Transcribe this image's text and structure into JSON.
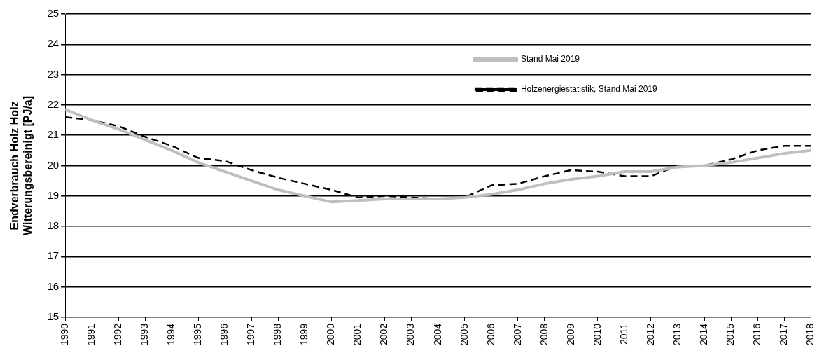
{
  "chart_data": {
    "type": "line",
    "ylabel": "Endverbrauch Holz Holz\nWitterungsbereinigt [PJ/a]",
    "categories": [
      "1990",
      "1991",
      "1992",
      "1993",
      "1994",
      "1995",
      "1996",
      "1997",
      "1998",
      "1999",
      "2000",
      "2001",
      "2002",
      "2003",
      "2004",
      "2005",
      "2006",
      "2007",
      "2008",
      "2009",
      "2010",
      "2011",
      "2012",
      "2013",
      "2014",
      "2015",
      "2016",
      "2017",
      "2018"
    ],
    "series": [
      {
        "name": "Stand Mai 2019",
        "color": "#bfbfbf",
        "line_style": "solid",
        "values": [
          21.85,
          21.5,
          21.2,
          20.85,
          20.5,
          20.1,
          19.8,
          19.5,
          19.2,
          19.0,
          18.8,
          18.85,
          18.9,
          18.9,
          18.9,
          18.95,
          19.05,
          19.2,
          19.4,
          19.55,
          19.65,
          19.8,
          19.8,
          19.95,
          20.0,
          20.1,
          20.25,
          20.4,
          20.5
        ]
      },
      {
        "name": "Holzenergiestatistik, Stand Mai 2019",
        "color": "#000000",
        "line_style": "dashed",
        "values": [
          21.6,
          21.5,
          21.3,
          20.95,
          20.65,
          20.25,
          20.15,
          19.85,
          19.6,
          19.4,
          19.2,
          18.95,
          19.0,
          18.95,
          18.9,
          18.95,
          19.35,
          19.4,
          19.65,
          19.85,
          19.8,
          19.65,
          19.65,
          20.0,
          20.0,
          20.2,
          20.5,
          20.65,
          20.65
        ]
      }
    ],
    "ylim": [
      15,
      25
    ],
    "yticks": [
      15,
      16,
      17,
      18,
      19,
      20,
      21,
      22,
      23,
      24,
      25
    ],
    "grid": "y",
    "legend": "top",
    "marker": "none"
  }
}
